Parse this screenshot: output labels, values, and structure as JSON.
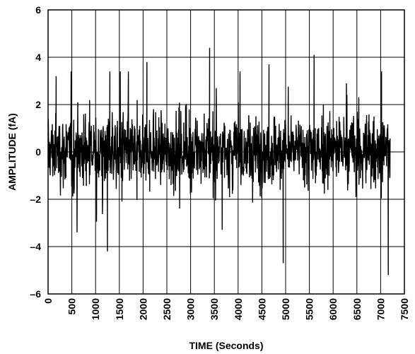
{
  "chart_data": {
    "type": "line",
    "title": "",
    "xlabel": "TIME (Seconds)",
    "ylabel": "AMPLITUDE (fA)",
    "xlim": [
      0,
      7500
    ],
    "ylim": [
      -6,
      6
    ],
    "x_ticks": [
      0,
      500,
      1000,
      1500,
      2000,
      2500,
      3000,
      3500,
      4000,
      4500,
      5000,
      5500,
      6000,
      6500,
      7000,
      7500
    ],
    "x_tick_labels": [
      "0",
      "500",
      "1000",
      "1500",
      "2000",
      "2500",
      "3000",
      "3500",
      "4000",
      "4500",
      "5000",
      "5500",
      "6000",
      "6500",
      "7000",
      "7500"
    ],
    "y_ticks": [
      -6,
      -4,
      -2,
      0,
      2,
      4,
      6
    ],
    "y_tick_labels": [
      "–6",
      "–4",
      "–2",
      "0",
      "2",
      "4",
      "6"
    ],
    "grid": true,
    "series_color": "#000000",
    "series": [
      {
        "x_range": [
          0,
          7200
        ],
        "sample_interval": 5,
        "typical_band": [
          -1.3,
          1.4
        ],
        "peaks": [
          {
            "x": 170,
            "y": 3.2
          },
          {
            "x": 1300,
            "y": 3.4
          },
          {
            "x": 2080,
            "y": 3.8
          },
          {
            "x": 3400,
            "y": 4.4
          },
          {
            "x": 4650,
            "y": 3.7
          },
          {
            "x": 5600,
            "y": 4.1
          },
          {
            "x": 7020,
            "y": 3.4
          },
          {
            "x": 1250,
            "y": -4.2
          },
          {
            "x": 4950,
            "y": -4.7
          },
          {
            "x": 7160,
            "y": -5.2
          }
        ]
      }
    ]
  }
}
